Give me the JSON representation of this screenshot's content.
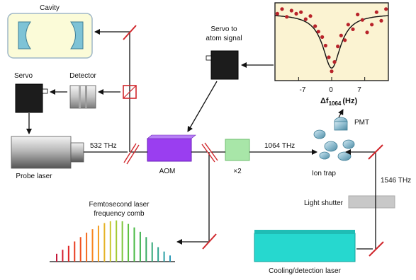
{
  "labels": {
    "cavity": "Cavity",
    "servo": "Servo",
    "detector": "Detector",
    "probe_laser": "Probe laser",
    "freq_532": "532 THz",
    "aom": "AOM",
    "doubler": "×2",
    "freq_1064": "1064 THz",
    "servo_atom_1": "Servo to",
    "servo_atom_2": "atom signal",
    "pmt": "PMT",
    "ion_trap": "Ion trap",
    "freq_1546": "1546 THz",
    "light_shutter": "Light shutter",
    "comb_1": "Femtosecond laser",
    "comb_2": "frequency comb",
    "cooling_laser": "Cooling/detection laser"
  },
  "colors": {
    "cavity_fill": "#fbfbd8",
    "cavity_mirror": "#7ec3d6",
    "aom": "#9a3ef0",
    "doubler": "#a8e6a8",
    "cooling_laser": "#26d8cf",
    "mirror": "#d0272c",
    "inset_fill": "#fbf3d2",
    "inset_points": "#b8232a",
    "shutter": "#c8c8c8"
  },
  "chart_data": {
    "type": "scatter",
    "xlabel_main": "Δf",
    "xlabel_sub": "1064",
    "xlabel_unit": "(Hz)",
    "xticks": [
      -7,
      0,
      7
    ],
    "xlim": [
      -12,
      12
    ],
    "ylim": [
      0,
      1
    ],
    "points": [
      {
        "x": -11.5,
        "y": 0.86
      },
      {
        "x": -10.5,
        "y": 0.92
      },
      {
        "x": -9.5,
        "y": 0.82
      },
      {
        "x": -8.5,
        "y": 0.9
      },
      {
        "x": -7.5,
        "y": 0.86
      },
      {
        "x": -6.5,
        "y": 0.88
      },
      {
        "x": -5.5,
        "y": 0.79
      },
      {
        "x": -4.5,
        "y": 0.83
      },
      {
        "x": -3.5,
        "y": 0.7
      },
      {
        "x": -2.8,
        "y": 0.63
      },
      {
        "x": -2.0,
        "y": 0.56
      },
      {
        "x": -1.3,
        "y": 0.45
      },
      {
        "x": -0.6,
        "y": 0.3
      },
      {
        "x": 0.0,
        "y": 0.12
      },
      {
        "x": 0.6,
        "y": 0.24
      },
      {
        "x": 1.3,
        "y": 0.44
      },
      {
        "x": 2.0,
        "y": 0.58
      },
      {
        "x": 2.8,
        "y": 0.52
      },
      {
        "x": 3.5,
        "y": 0.72
      },
      {
        "x": 4.5,
        "y": 0.66
      },
      {
        "x": 5.5,
        "y": 0.85
      },
      {
        "x": 6.5,
        "y": 0.78
      },
      {
        "x": 7.5,
        "y": 0.62
      },
      {
        "x": 8.5,
        "y": 0.72
      },
      {
        "x": 9.5,
        "y": 0.88
      },
      {
        "x": 10.5,
        "y": 0.77
      },
      {
        "x": 11.5,
        "y": 0.92
      }
    ],
    "fit": {
      "baseline": 0.86,
      "depth": 0.7,
      "gamma": 2.3
    }
  },
  "comb": {
    "heights": [
      0.18,
      0.27,
      0.36,
      0.46,
      0.56,
      0.66,
      0.74,
      0.82,
      0.88,
      0.92,
      0.94,
      0.92,
      0.86,
      0.78,
      0.68,
      0.56,
      0.44,
      0.33,
      0.23,
      0.14
    ],
    "colors": [
      "#c5193a",
      "#d21c2e",
      "#df2626",
      "#e83a1e",
      "#f04f1d",
      "#f46a1c",
      "#f7851f",
      "#f59d20",
      "#e5b325",
      "#c8c72e",
      "#a3cb33",
      "#7dc63a",
      "#5ec03f",
      "#48b944",
      "#3fb24f",
      "#3aac63",
      "#35a878",
      "#2fa48e",
      "#2b9fa4",
      "#2a98b7"
    ]
  }
}
